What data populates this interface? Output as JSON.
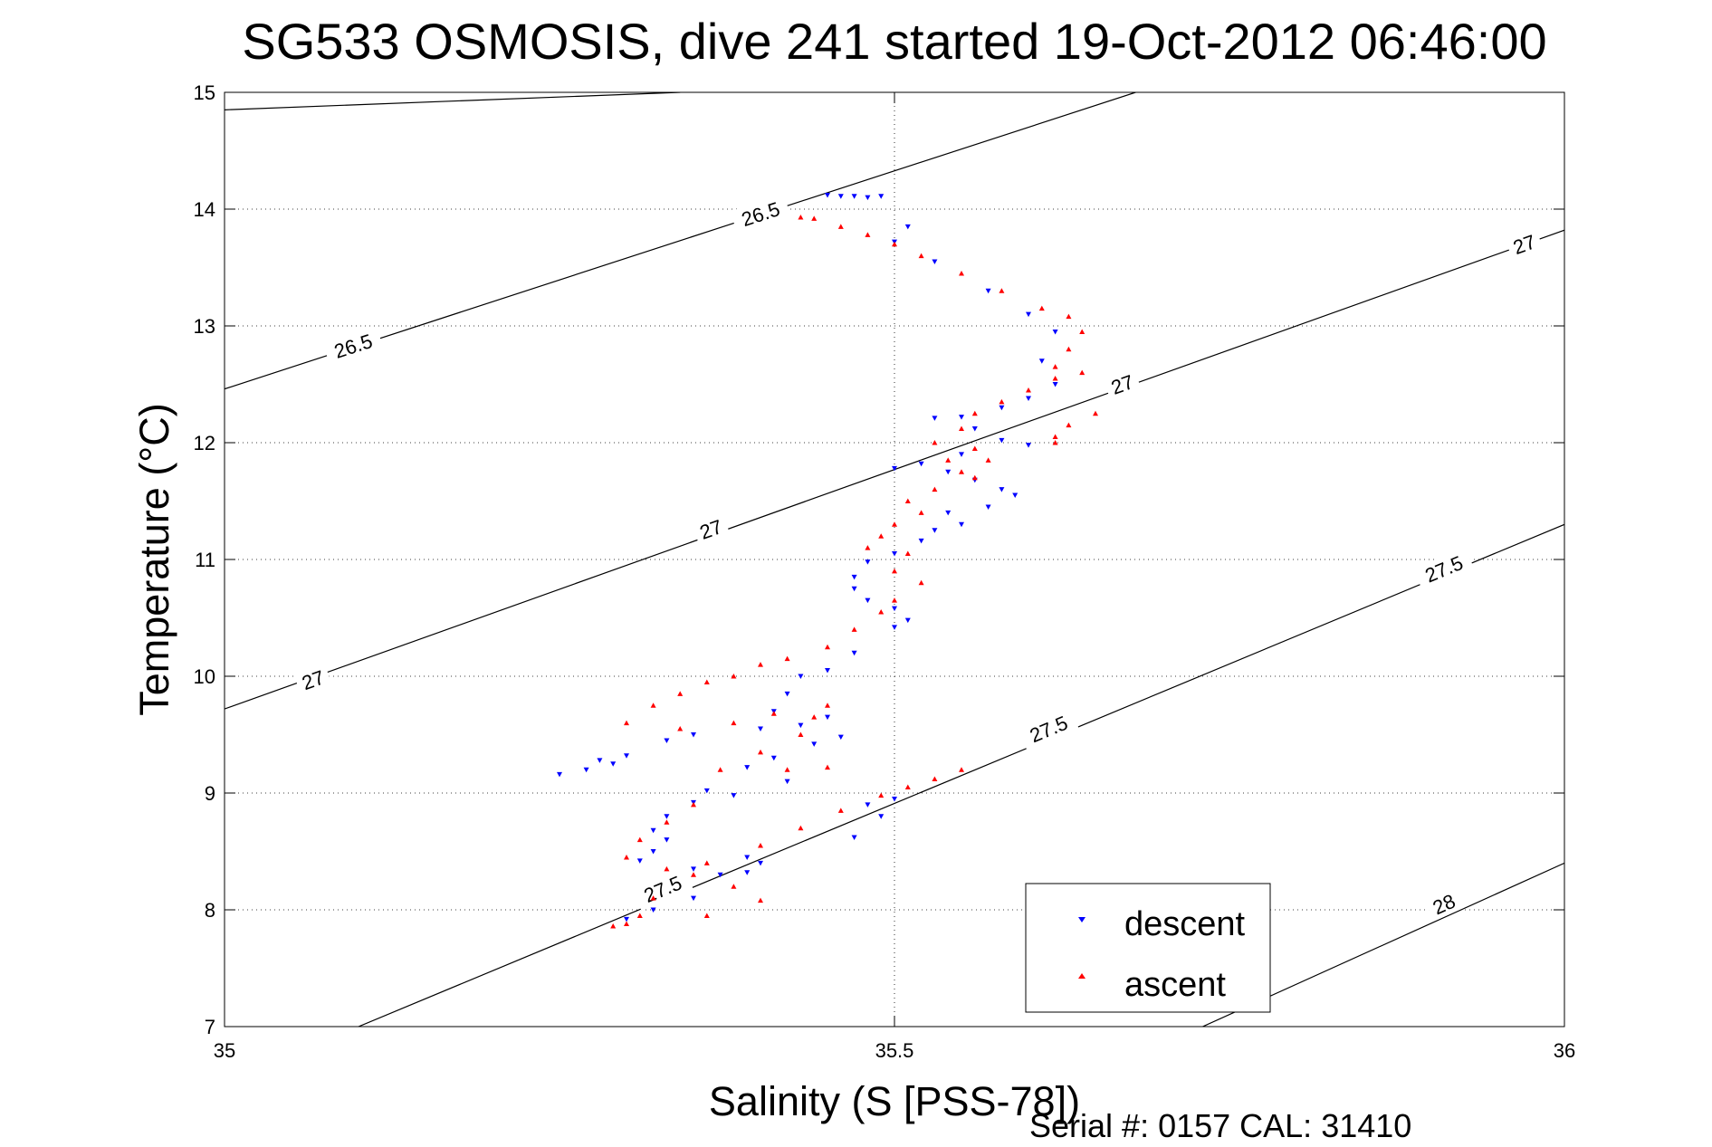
{
  "chart_data": {
    "type": "scatter",
    "title": "SG533 OSMOSIS, dive 241 started 19-Oct-2012 06:46:00",
    "xlabel": "Salinity (S [PSS-78])",
    "ylabel": "Temperature (°C)",
    "xlim": [
      35,
      36
    ],
    "ylim": [
      7,
      15
    ],
    "xticks": [
      35,
      35.5,
      36
    ],
    "xtick_labels": [
      "35",
      "35.5",
      "36"
    ],
    "yticks": [
      7,
      8,
      9,
      10,
      11,
      12,
      13,
      14,
      15
    ],
    "ytick_labels": [
      "7",
      "8",
      "9",
      "10",
      "11",
      "12",
      "13",
      "14",
      "15"
    ],
    "grid": "dotted",
    "legend_position": "bottom-right",
    "footer": "Serial #: 0157  CAL: 31410",
    "density_contours": [
      {
        "value": 26.5,
        "points": [
          [
            35.0,
            14.85
          ],
          [
            35.34,
            15.0
          ]
        ],
        "labels": []
      },
      {
        "value": 26.5,
        "points": [
          [
            35.0,
            12.46
          ],
          [
            35.68,
            15.0
          ]
        ],
        "labels": [
          {
            "text": "26.5",
            "x": 35.096,
            "y": 12.83
          },
          {
            "text": "26.5",
            "x": 35.4,
            "y": 13.96
          }
        ]
      },
      {
        "value": 27,
        "points": [
          [
            35.0,
            9.72
          ],
          [
            36.0,
            13.82
          ]
        ],
        "labels": [
          {
            "text": "27",
            "x": 35.066,
            "y": 9.97
          },
          {
            "text": "27",
            "x": 35.363,
            "y": 11.26
          },
          {
            "text": "27",
            "x": 35.67,
            "y": 12.5
          },
          {
            "text": "27",
            "x": 35.97,
            "y": 13.7
          }
        ]
      },
      {
        "value": 27.5,
        "points": [
          [
            35.1,
            7.0
          ],
          [
            36.0,
            11.3
          ]
        ],
        "labels": [
          {
            "text": "27.5",
            "x": 35.327,
            "y": 8.18
          },
          {
            "text": "27.5",
            "x": 35.615,
            "y": 9.55
          },
          {
            "text": "27.5",
            "x": 35.91,
            "y": 10.92
          }
        ]
      },
      {
        "value": 28,
        "points": [
          [
            35.73,
            7.0
          ],
          [
            36.0,
            8.4
          ]
        ],
        "labels": [
          {
            "text": "28",
            "x": 35.91,
            "y": 8.05
          }
        ]
      }
    ],
    "series": [
      {
        "name": "descent",
        "color": "#0000ff",
        "marker": "triangle-down",
        "points": [
          [
            35.45,
            14.12
          ],
          [
            35.46,
            14.11
          ],
          [
            35.47,
            14.11
          ],
          [
            35.48,
            14.1
          ],
          [
            35.49,
            14.11
          ],
          [
            35.51,
            13.85
          ],
          [
            35.5,
            13.72
          ],
          [
            35.53,
            13.55
          ],
          [
            35.57,
            13.3
          ],
          [
            35.6,
            13.1
          ],
          [
            35.62,
            12.95
          ],
          [
            35.61,
            12.7
          ],
          [
            35.62,
            12.5
          ],
          [
            35.6,
            12.38
          ],
          [
            35.58,
            12.3
          ],
          [
            35.55,
            12.22
          ],
          [
            35.53,
            12.21
          ],
          [
            35.56,
            12.12
          ],
          [
            35.58,
            12.02
          ],
          [
            35.6,
            11.98
          ],
          [
            35.55,
            11.9
          ],
          [
            35.52,
            11.82
          ],
          [
            35.5,
            11.78
          ],
          [
            35.54,
            11.75
          ],
          [
            35.56,
            11.68
          ],
          [
            35.58,
            11.6
          ],
          [
            35.59,
            11.55
          ],
          [
            35.57,
            11.45
          ],
          [
            35.54,
            11.4
          ],
          [
            35.55,
            11.3
          ],
          [
            35.53,
            11.25
          ],
          [
            35.52,
            11.16
          ],
          [
            35.5,
            11.05
          ],
          [
            35.48,
            10.98
          ],
          [
            35.47,
            10.85
          ],
          [
            35.47,
            10.75
          ],
          [
            35.48,
            10.65
          ],
          [
            35.5,
            10.58
          ],
          [
            35.51,
            10.48
          ],
          [
            35.5,
            10.42
          ],
          [
            35.47,
            10.2
          ],
          [
            35.45,
            10.05
          ],
          [
            35.43,
            10.0
          ],
          [
            35.42,
            9.85
          ],
          [
            35.41,
            9.7
          ],
          [
            35.45,
            9.65
          ],
          [
            35.43,
            9.58
          ],
          [
            35.4,
            9.55
          ],
          [
            35.46,
            9.48
          ],
          [
            35.44,
            9.42
          ],
          [
            35.35,
            9.5
          ],
          [
            35.33,
            9.45
          ],
          [
            35.3,
            9.32
          ],
          [
            35.29,
            9.25
          ],
          [
            35.27,
            9.2
          ],
          [
            35.25,
            9.16
          ],
          [
            35.28,
            9.28
          ],
          [
            35.41,
            9.3
          ],
          [
            35.39,
            9.22
          ],
          [
            35.42,
            9.1
          ],
          [
            35.36,
            9.02
          ],
          [
            35.38,
            8.98
          ],
          [
            35.35,
            8.92
          ],
          [
            35.33,
            8.8
          ],
          [
            35.32,
            8.68
          ],
          [
            35.33,
            8.6
          ],
          [
            35.32,
            8.5
          ],
          [
            35.31,
            8.42
          ],
          [
            35.35,
            8.35
          ],
          [
            35.37,
            8.3
          ],
          [
            35.39,
            8.45
          ],
          [
            35.4,
            8.4
          ],
          [
            35.39,
            8.32
          ],
          [
            35.35,
            8.1
          ],
          [
            35.32,
            8.0
          ],
          [
            35.3,
            7.92
          ],
          [
            35.5,
            8.95
          ],
          [
            35.48,
            8.9
          ],
          [
            35.49,
            8.8
          ],
          [
            35.47,
            8.62
          ]
        ]
      },
      {
        "name": "ascent",
        "color": "#ff0000",
        "marker": "triangle-up",
        "points": [
          [
            35.43,
            13.93
          ],
          [
            35.44,
            13.92
          ],
          [
            35.46,
            13.85
          ],
          [
            35.48,
            13.78
          ],
          [
            35.5,
            13.7
          ],
          [
            35.52,
            13.6
          ],
          [
            35.55,
            13.45
          ],
          [
            35.58,
            13.3
          ],
          [
            35.61,
            13.15
          ],
          [
            35.63,
            13.08
          ],
          [
            35.64,
            12.95
          ],
          [
            35.63,
            12.8
          ],
          [
            35.62,
            12.65
          ],
          [
            35.64,
            12.6
          ],
          [
            35.62,
            12.55
          ],
          [
            35.6,
            12.45
          ],
          [
            35.58,
            12.35
          ],
          [
            35.56,
            12.25
          ],
          [
            35.55,
            12.12
          ],
          [
            35.53,
            12.0
          ],
          [
            35.56,
            11.95
          ],
          [
            35.54,
            11.85
          ],
          [
            35.55,
            11.75
          ],
          [
            35.53,
            11.6
          ],
          [
            35.51,
            11.5
          ],
          [
            35.52,
            11.4
          ],
          [
            35.5,
            11.3
          ],
          [
            35.49,
            11.2
          ],
          [
            35.48,
            11.1
          ],
          [
            35.51,
            11.05
          ],
          [
            35.5,
            10.9
          ],
          [
            35.52,
            10.8
          ],
          [
            35.5,
            10.65
          ],
          [
            35.49,
            10.55
          ],
          [
            35.47,
            10.4
          ],
          [
            35.45,
            10.25
          ],
          [
            35.42,
            10.15
          ],
          [
            35.4,
            10.1
          ],
          [
            35.38,
            10.0
          ],
          [
            35.36,
            9.95
          ],
          [
            35.34,
            9.85
          ],
          [
            35.32,
            9.75
          ],
          [
            35.3,
            9.6
          ],
          [
            35.34,
            9.55
          ],
          [
            35.38,
            9.6
          ],
          [
            35.41,
            9.68
          ],
          [
            35.45,
            9.75
          ],
          [
            35.44,
            9.65
          ],
          [
            35.43,
            9.5
          ],
          [
            35.4,
            9.35
          ],
          [
            35.37,
            9.2
          ],
          [
            35.42,
            9.2
          ],
          [
            35.45,
            9.22
          ],
          [
            35.35,
            8.9
          ],
          [
            35.33,
            8.75
          ],
          [
            35.31,
            8.6
          ],
          [
            35.3,
            8.45
          ],
          [
            35.33,
            8.35
          ],
          [
            35.36,
            8.4
          ],
          [
            35.4,
            8.55
          ],
          [
            35.43,
            8.7
          ],
          [
            35.46,
            8.85
          ],
          [
            35.49,
            8.98
          ],
          [
            35.51,
            9.05
          ],
          [
            35.53,
            9.12
          ],
          [
            35.55,
            9.2
          ],
          [
            35.62,
            12.05
          ],
          [
            35.63,
            12.15
          ],
          [
            35.65,
            12.25
          ],
          [
            35.62,
            12.0
          ],
          [
            35.57,
            11.85
          ],
          [
            35.56,
            11.7
          ],
          [
            35.35,
            8.3
          ],
          [
            35.32,
            8.1
          ],
          [
            35.31,
            7.95
          ],
          [
            35.3,
            7.88
          ],
          [
            35.29,
            7.86
          ],
          [
            35.36,
            7.95
          ],
          [
            35.4,
            8.08
          ],
          [
            35.38,
            8.2
          ]
        ]
      }
    ]
  }
}
